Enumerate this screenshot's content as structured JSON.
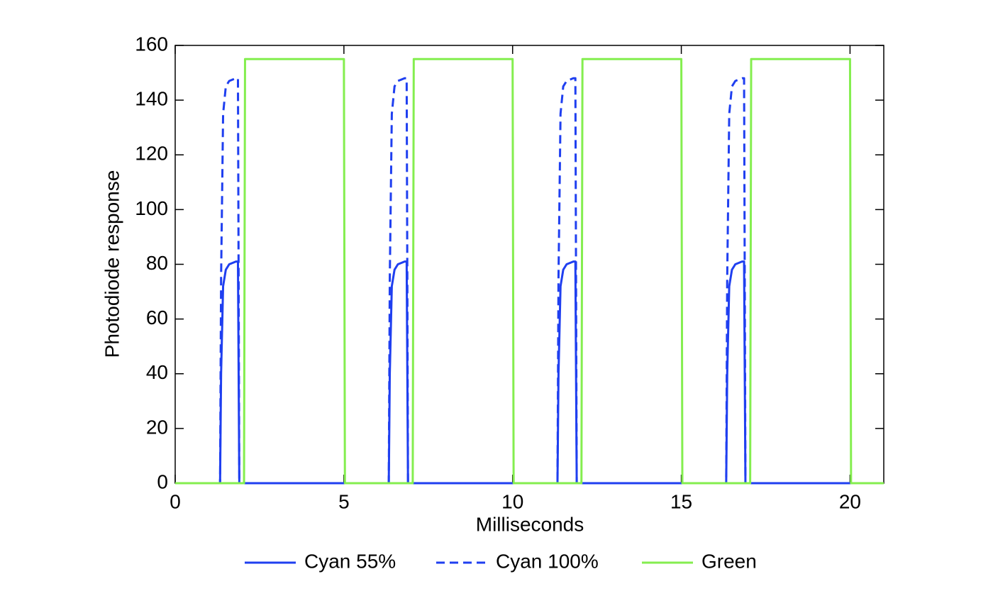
{
  "chart_data": {
    "type": "line",
    "xlabel": "Milliseconds",
    "ylabel": "Photodiode response",
    "x": [
      0,
      1.33,
      1.36,
      1.42,
      1.5,
      1.6,
      1.8,
      1.86,
      1.9,
      2.04,
      2.07,
      5,
      5.03,
      6.33,
      6.36,
      6.42,
      6.5,
      6.6,
      6.8,
      6.86,
      6.9,
      7.04,
      7.07,
      10,
      10.03,
      11.33,
      11.36,
      11.42,
      11.5,
      11.6,
      11.8,
      11.86,
      11.9,
      12.04,
      12.07,
      15,
      15.03,
      16.33,
      16.36,
      16.42,
      16.5,
      16.6,
      16.8,
      16.86,
      16.9,
      17.04,
      17.07,
      20,
      20.03,
      21
    ],
    "series": [
      {
        "name": "Cyan 55%",
        "color": "#1f3ff0",
        "style": "solid",
        "values": [
          0,
          0,
          40,
          72,
          78,
          80,
          81,
          81,
          0,
          0,
          0,
          0,
          0,
          0,
          40,
          72,
          78,
          80,
          81,
          81,
          0,
          0,
          0,
          0,
          0,
          0,
          40,
          72,
          78,
          80,
          81,
          81,
          0,
          0,
          0,
          0,
          0,
          0,
          40,
          72,
          78,
          80,
          81,
          81,
          0,
          0,
          0,
          0,
          0,
          0
        ]
      },
      {
        "name": "Cyan 100%",
        "color": "#1f3ff0",
        "style": "dashed",
        "values": [
          0,
          0,
          75,
          135,
          145,
          147,
          148,
          148,
          0,
          0,
          0,
          0,
          0,
          0,
          75,
          135,
          145,
          147,
          148,
          148,
          0,
          0,
          0,
          0,
          0,
          0,
          75,
          135,
          145,
          147,
          148,
          148,
          0,
          0,
          0,
          0,
          0,
          0,
          75,
          135,
          145,
          147,
          148,
          148,
          0,
          0,
          0,
          0,
          0,
          0
        ]
      },
      {
        "name": "Green",
        "color": "#84ee4f",
        "style": "solid",
        "values": [
          0,
          0,
          0,
          0,
          0,
          0,
          0,
          0,
          0,
          0,
          155,
          155,
          0,
          0,
          0,
          0,
          0,
          0,
          0,
          0,
          0,
          0,
          155,
          155,
          0,
          0,
          0,
          0,
          0,
          0,
          0,
          0,
          0,
          0,
          155,
          155,
          0,
          0,
          0,
          0,
          0,
          0,
          0,
          0,
          0,
          0,
          155,
          155,
          0,
          0
        ]
      }
    ],
    "xlim": [
      0,
      21
    ],
    "xticks": [
      0,
      5,
      10,
      15,
      20
    ],
    "ylim": [
      0,
      160
    ],
    "yticks": [
      0,
      20,
      40,
      60,
      80,
      100,
      120,
      140,
      160
    ],
    "grid": false,
    "legend": "bottom"
  }
}
